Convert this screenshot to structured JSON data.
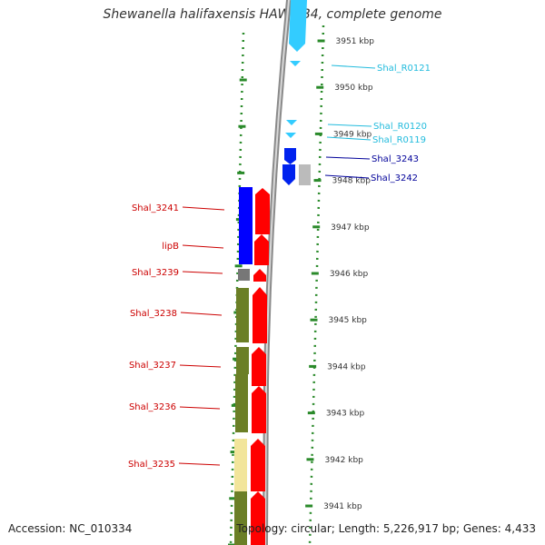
{
  "title": "Shewanella halifaxensis HAW-EB4, complete genome",
  "footer": {
    "accession": "Accession: NC_010334",
    "summary": "Topology: circular; Length: 5,226,917 bp; Genes: 4,433"
  },
  "axis_unit": "kbp",
  "colors": {
    "background": "#ffffff",
    "backbone": "#8a8a8a",
    "tick": "#2a8a2a",
    "label_red": "#cc0000",
    "label_cyan": "#22bbdd",
    "label_navy": "#000099",
    "cds_forward": "#ff0000",
    "cds_reverse": "#0022ee",
    "rna": "#33ccff",
    "cog_blue": "#0000ff",
    "cog_grey": "#777777",
    "cog_olive": "#6b7f26",
    "cog_khaki": "#f2e59a",
    "pseudo_grey": "#bbbbbb"
  },
  "ticks": [
    {
      "label": "3951 kbp",
      "kbp": 3951
    },
    {
      "label": "3950 kbp",
      "kbp": 3950
    },
    {
      "label": "3949 kbp",
      "kbp": 3949
    },
    {
      "label": "3948 kbp",
      "kbp": 3948
    },
    {
      "label": "3947 kbp",
      "kbp": 3947
    },
    {
      "label": "3946 kbp",
      "kbp": 3946
    },
    {
      "label": "3945 kbp",
      "kbp": 3945
    },
    {
      "label": "3944 kbp",
      "kbp": 3944
    },
    {
      "label": "3943 kbp",
      "kbp": 3943
    },
    {
      "label": "3942 kbp",
      "kbp": 3942
    },
    {
      "label": "3941 kbp",
      "kbp": 3941
    }
  ],
  "genes_left": [
    {
      "name": "Shal_3241",
      "cog": "cog_blue"
    },
    {
      "name": "lipB",
      "cog": "cog_blue"
    },
    {
      "name": "Shal_3239",
      "cog": "cog_grey"
    },
    {
      "name": "Shal_3238",
      "cog": "cog_olive"
    },
    {
      "name": "Shal_3237",
      "cog": "cog_olive"
    },
    {
      "name": "Shal_3236",
      "cog": "cog_olive"
    },
    {
      "name": "Shal_3235",
      "cog": "cog_khaki"
    }
  ],
  "genes_right": [
    {
      "name": "Shal_R0121",
      "color": "label_cyan"
    },
    {
      "name": "Shal_R0120",
      "color": "label_cyan"
    },
    {
      "name": "Shal_R0119",
      "color": "label_cyan"
    },
    {
      "name": "Shal_3243",
      "color": "label_navy"
    },
    {
      "name": "Shal_3242",
      "color": "label_navy"
    }
  ]
}
